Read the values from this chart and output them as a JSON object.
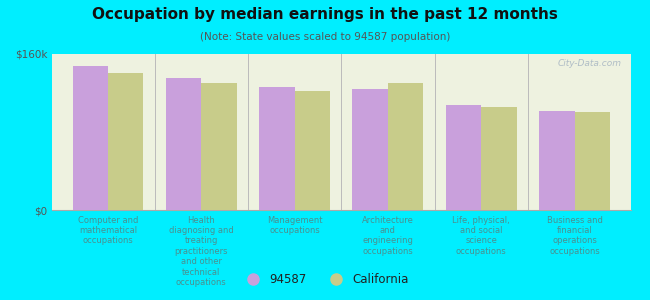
{
  "title": "Occupation by median earnings in the past 12 months",
  "subtitle": "(Note: State values scaled to 94587 population)",
  "background_outer": "#00eeff",
  "background_inner": "#eef2e0",
  "categories": [
    "Computer and\nmathematical\noccupations",
    "Health\ndiagnosing and\ntreating\npractitioners\nand other\ntechnical\noccupations",
    "Management\noccupations",
    "Architecture\nand\nengineering\noccupations",
    "Life, physical,\nand social\nscience\noccupations",
    "Business and\nfinancial\noperations\noccupations"
  ],
  "values_94587": [
    148000,
    135000,
    126000,
    124000,
    108000,
    102000
  ],
  "values_california": [
    140000,
    130000,
    122000,
    130000,
    106000,
    100000
  ],
  "color_94587": "#c9a0dc",
  "color_california": "#c8cc8a",
  "ylim": [
    0,
    160000
  ],
  "yticks": [
    0,
    160000
  ],
  "ytick_labels": [
    "$0",
    "$160k"
  ],
  "bar_width": 0.38,
  "legend_label_94587": "94587",
  "legend_label_california": "California",
  "watermark": "City-Data.com",
  "title_color": "#111111",
  "subtitle_color": "#555555",
  "xlabel_color": "#4a9090",
  "separator_color": "#bbbbbb",
  "ytick_color": "#555555"
}
